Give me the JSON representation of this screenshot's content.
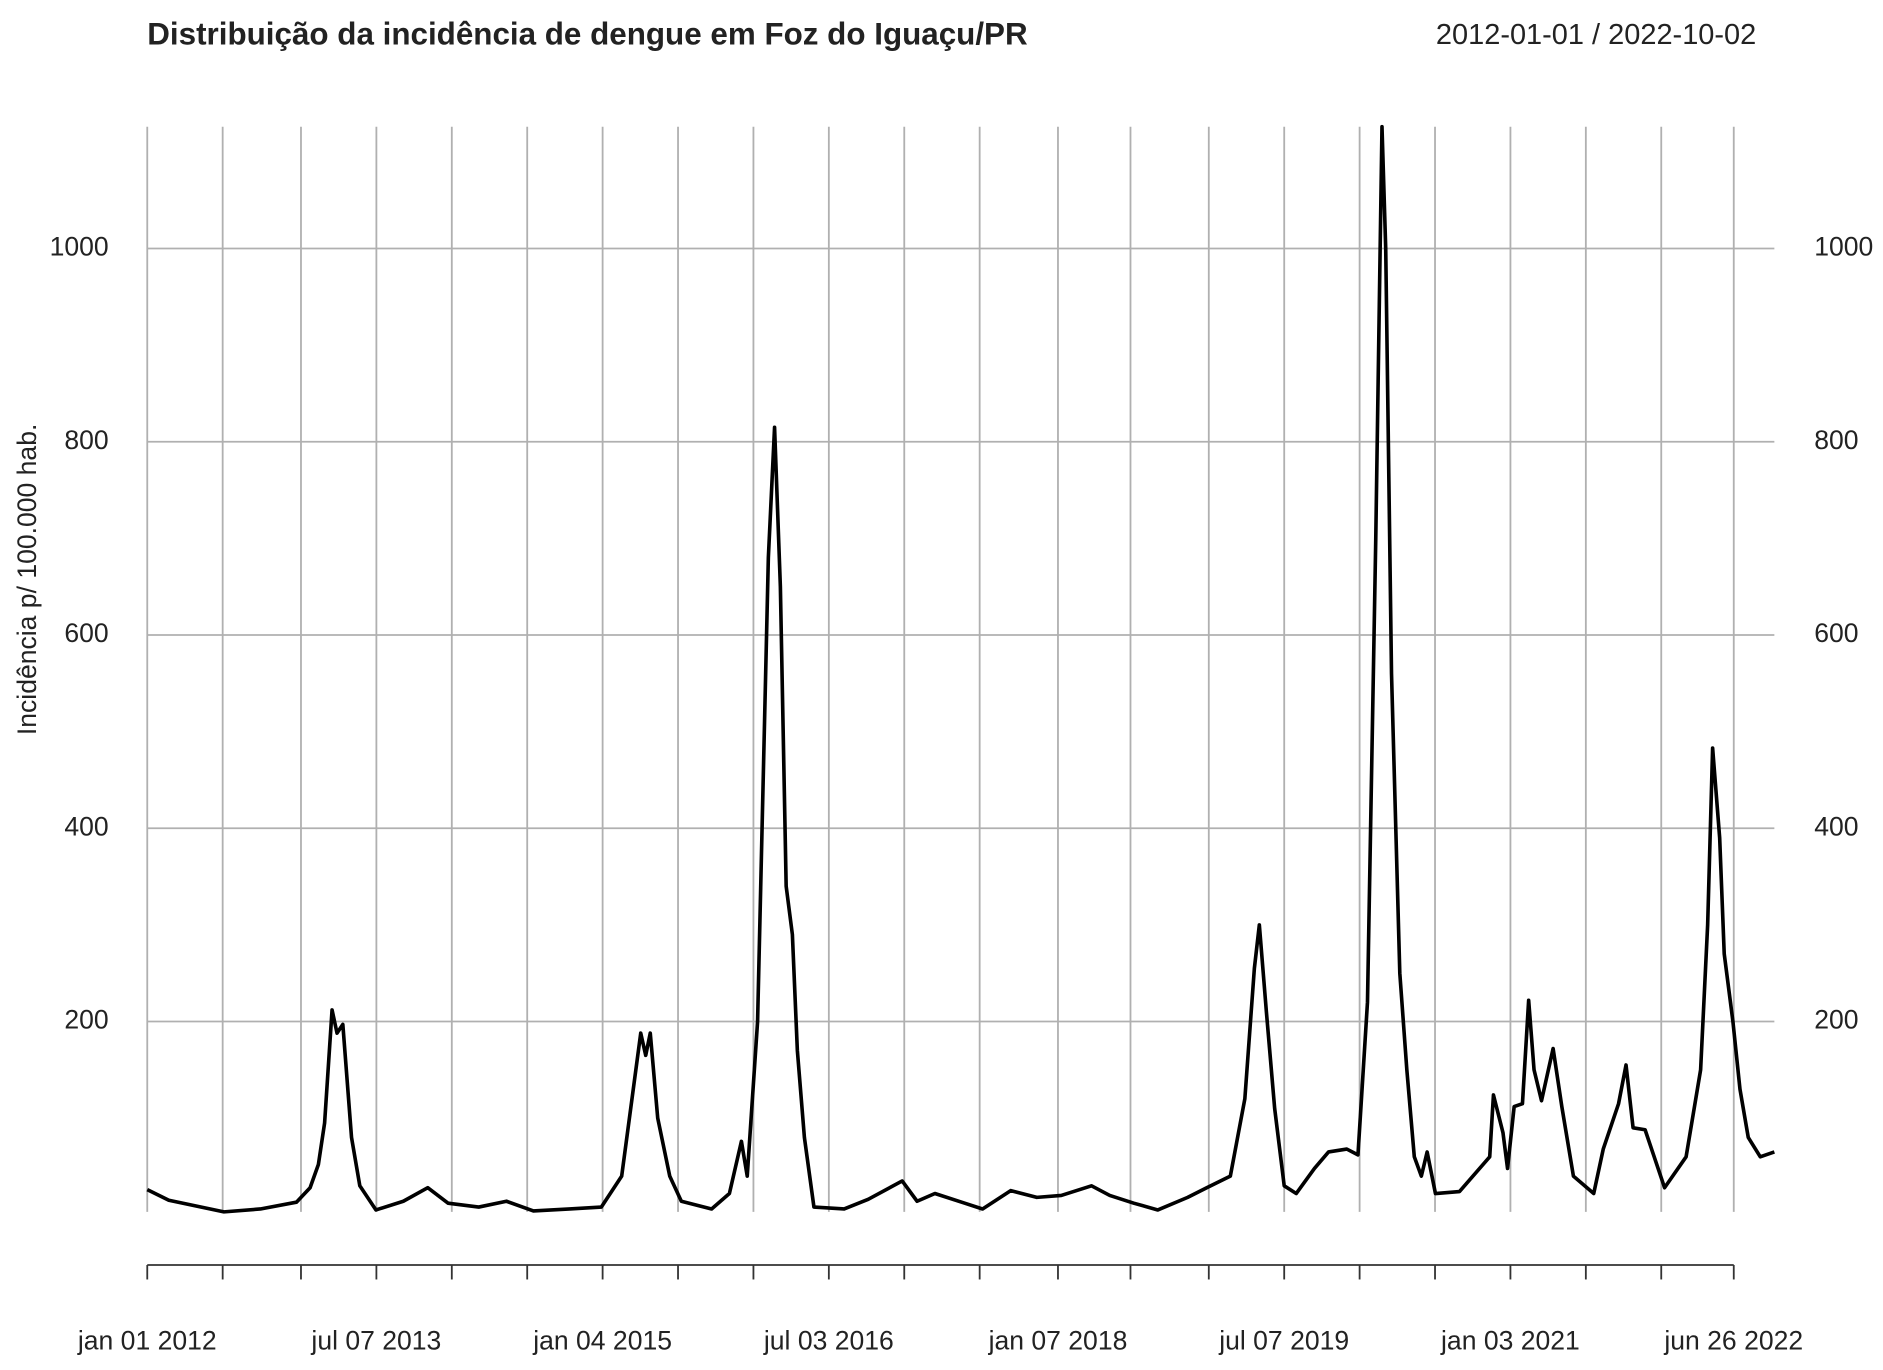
{
  "chart_data": {
    "type": "line",
    "title": "Distribuição da incidência de dengue em Foz do Iguaçu/PR",
    "date_range": "2012-01-01 / 2022-10-02",
    "ylabel": "Incidência p/ 100.000 hab.",
    "color": "#000000",
    "grid": true,
    "x": [
      "2012-01-01",
      "2012-02-22",
      "2012-07-04",
      "2012-09-30",
      "2012-12-26",
      "2013-01-28",
      "2013-02-17",
      "2013-03-04",
      "2013-03-22",
      "2013-04-03",
      "2013-04-17",
      "2013-05-08",
      "2013-05-28",
      "2013-07-06",
      "2013-09-10",
      "2013-11-08",
      "2013-12-27",
      "2014-03-11",
      "2014-05-17",
      "2014-07-21",
      "2014-10-17",
      "2015-01-01",
      "2015-02-19",
      "2015-03-19",
      "2015-04-06",
      "2015-04-18",
      "2015-04-29",
      "2015-05-17",
      "2015-06-15",
      "2015-07-13",
      "2015-09-24",
      "2015-11-06",
      "2015-12-05",
      "2015-12-19",
      "2016-01-13",
      "2016-02-08",
      "2016-02-23",
      "2016-03-08",
      "2016-03-22",
      "2016-04-06",
      "2016-04-18",
      "2016-05-05",
      "2016-05-28",
      "2016-08-09",
      "2016-10-06",
      "2016-12-27",
      "2017-02-01",
      "2017-03-16",
      "2017-05-27",
      "2017-07-09",
      "2017-09-15",
      "2017-11-17",
      "2018-01-15",
      "2018-03-29",
      "2018-05-12",
      "2018-07-09",
      "2018-09-05",
      "2018-11-16",
      "2019-01-01",
      "2019-02-27",
      "2019-04-03",
      "2019-04-26",
      "2019-05-08",
      "2019-05-25",
      "2019-06-14",
      "2019-07-07",
      "2019-08-05",
      "2019-09-18",
      "2019-10-22",
      "2019-12-05",
      "2020-01-01",
      "2020-01-24",
      "2020-02-13",
      "2020-02-28",
      "2020-03-08",
      "2020-03-22",
      "2020-04-11",
      "2020-04-28",
      "2020-05-16",
      "2020-06-02",
      "2020-06-16",
      "2020-07-06",
      "2020-09-02",
      "2020-11-14",
      "2020-11-23",
      "2020-12-16",
      "2020-12-27",
      "2021-01-12",
      "2021-02-01",
      "2021-02-16",
      "2021-03-01",
      "2021-03-19",
      "2021-04-02",
      "2021-04-16",
      "2021-05-07",
      "2021-06-04",
      "2021-07-23",
      "2021-08-15",
      "2021-09-21",
      "2021-10-09",
      "2021-10-26",
      "2021-11-24",
      "2022-01-10",
      "2022-03-03",
      "2022-04-07",
      "2022-04-24",
      "2022-05-06",
      "2022-05-23",
      "2022-06-03",
      "2022-06-24",
      "2022-07-11",
      "2022-07-31",
      "2022-08-29",
      "2022-10-02"
    ],
    "values": [
      26,
      15,
      3,
      6,
      13,
      28,
      52,
      95,
      212,
      188,
      197,
      80,
      30,
      5,
      14,
      28,
      12,
      8,
      14,
      4,
      6,
      8,
      40,
      130,
      188,
      165,
      188,
      100,
      40,
      14,
      6,
      22,
      76,
      40,
      200,
      680,
      815,
      650,
      340,
      290,
      170,
      80,
      8,
      6,
      16,
      35,
      14,
      22,
      12,
      6,
      25,
      18,
      20,
      30,
      20,
      12,
      5,
      18,
      28,
      40,
      120,
      255,
      300,
      210,
      110,
      30,
      22,
      48,
      65,
      68,
      62,
      220,
      700,
      1126,
      1000,
      560,
      250,
      150,
      60,
      40,
      65,
      22,
      24,
      60,
      124,
      85,
      48,
      112,
      115,
      222,
      150,
      118,
      145,
      172,
      112,
      40,
      22,
      68,
      115,
      155,
      90,
      88,
      28,
      60,
      150,
      300,
      483,
      390,
      270,
      200,
      130,
      80,
      60,
      65
    ],
    "xlim": [
      "2012-01-01",
      "2022-10-02"
    ],
    "ylim": [
      3,
      1126
    ],
    "yticks": [
      200,
      400,
      600,
      800,
      1000
    ],
    "xticks": [
      {
        "value": "2012-01-01",
        "label": "jan 01 2012"
      },
      {
        "value": "2013-07-07",
        "label": "jul 07 2013"
      },
      {
        "value": "2015-01-04",
        "label": "jan 04 2015"
      },
      {
        "value": "2016-07-03",
        "label": "jul 03 2016"
      },
      {
        "value": "2018-01-07",
        "label": "jan 07 2018"
      },
      {
        "value": "2019-07-07",
        "label": "jul 07 2019"
      },
      {
        "value": "2021-01-03",
        "label": "jan 03 2021"
      },
      {
        "value": "2022-06-26",
        "label": "jun 26 2022"
      }
    ],
    "x_minor_ticks": [
      "2012-07-01",
      "2013-01-06",
      "2014-01-05",
      "2014-07-06",
      "2015-07-05",
      "2016-01-03",
      "2017-01-01",
      "2017-07-02",
      "2018-07-01",
      "2019-01-06",
      "2020-01-05",
      "2020-07-05",
      "2021-07-04",
      "2022-01-02"
    ]
  }
}
